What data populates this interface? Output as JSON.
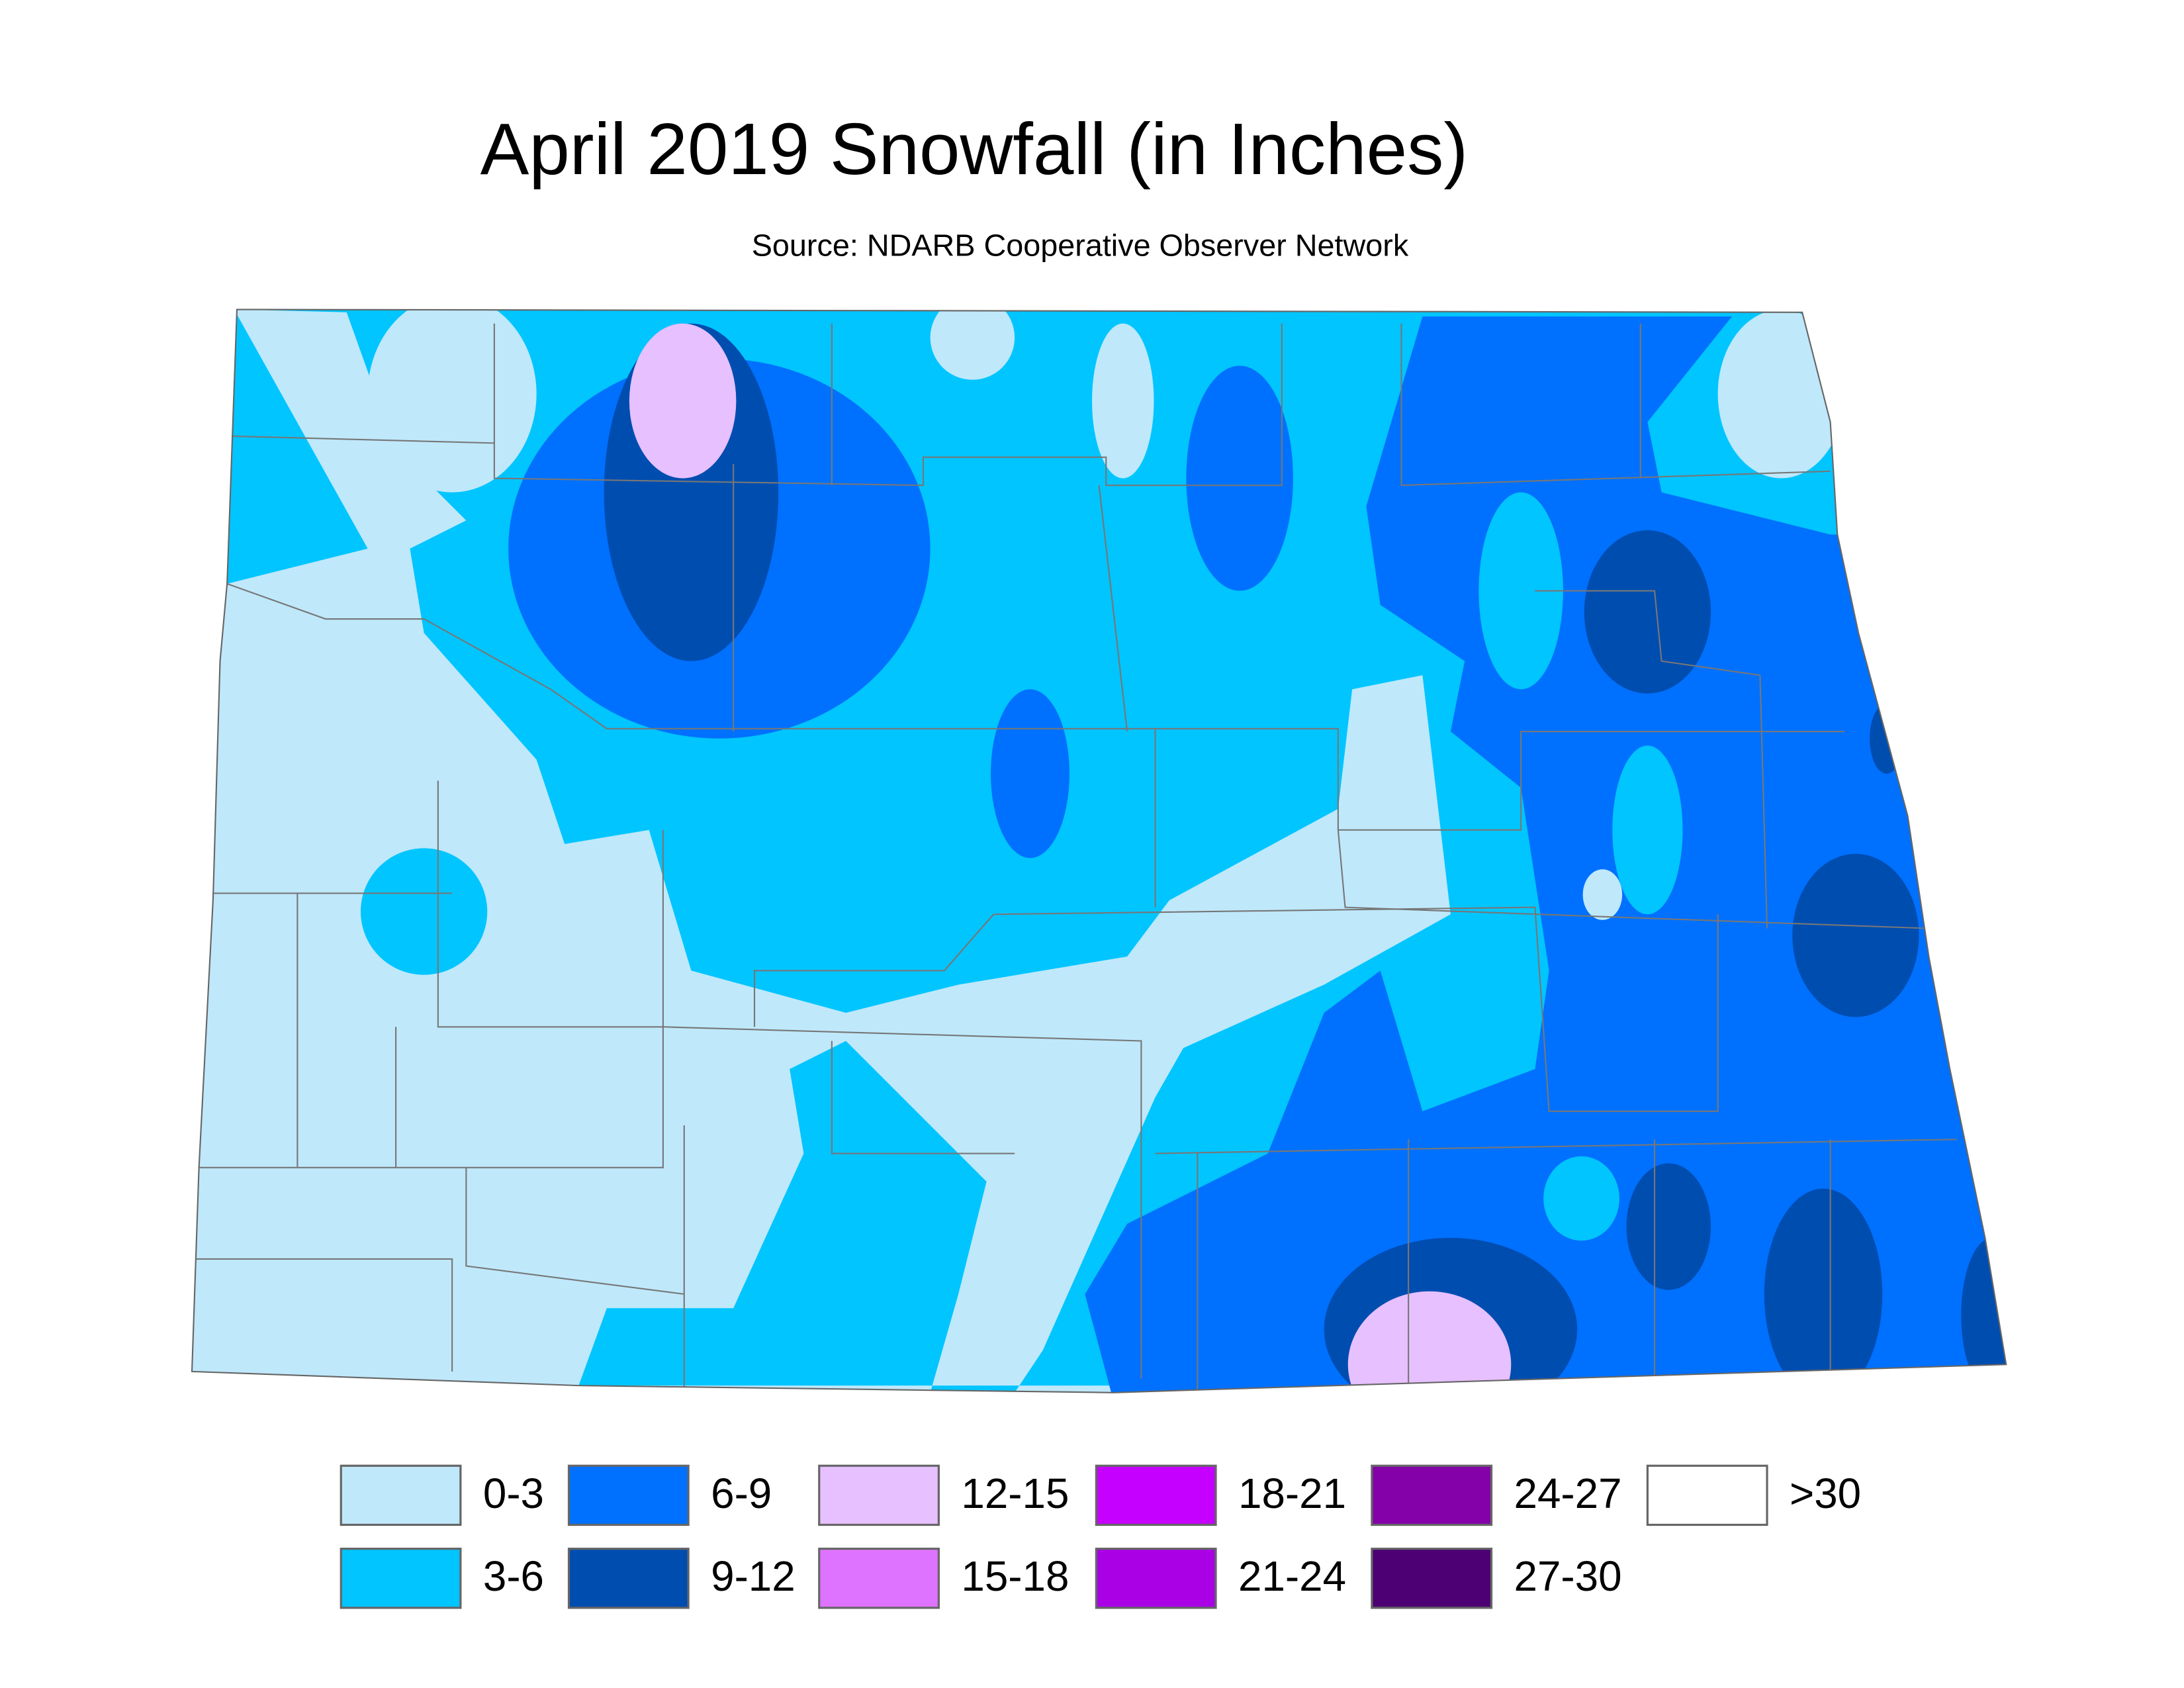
{
  "title": "April 2019 Snowfall (in Inches)",
  "subtitle": "Source: NDARB Cooperative Observer Network",
  "legend": [
    {
      "label": "0-3",
      "color": "#bfe8fb"
    },
    {
      "label": "3-6",
      "color": "#00c5ff"
    },
    {
      "label": "6-9",
      "color": "#0070ff"
    },
    {
      "label": "9-12",
      "color": "#004db0"
    },
    {
      "label": "12-15",
      "color": "#e6c0ff"
    },
    {
      "label": "15-18",
      "color": "#de73ff"
    },
    {
      "label": "18-21",
      "color": "#c500ff"
    },
    {
      "label": "21-24",
      "color": "#a900e6"
    },
    {
      "label": "24-27",
      "color": "#8400a8"
    },
    {
      "label": "27-30",
      "color": "#4c0073"
    },
    {
      "label": ">30",
      "color": "#ffffff"
    }
  ]
}
